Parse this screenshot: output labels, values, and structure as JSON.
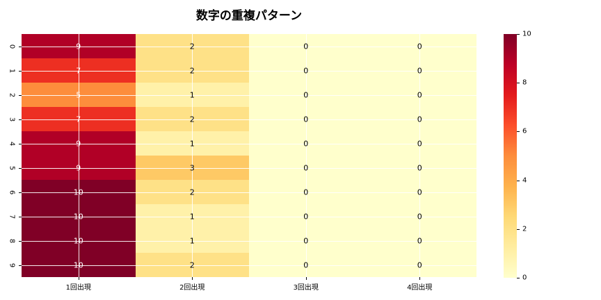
{
  "chart_data": {
    "type": "heatmap",
    "title": "数字の重複パターン",
    "rows": [
      "0",
      "1",
      "2",
      "3",
      "4",
      "5",
      "6",
      "7",
      "8",
      "9"
    ],
    "columns": [
      "1回出現",
      "2回出現",
      "3回出現",
      "4回出現"
    ],
    "values": [
      [
        9,
        2,
        0,
        0
      ],
      [
        7,
        2,
        0,
        0
      ],
      [
        5,
        1,
        0,
        0
      ],
      [
        7,
        2,
        0,
        0
      ],
      [
        9,
        1,
        0,
        0
      ],
      [
        9,
        3,
        0,
        0
      ],
      [
        10,
        2,
        0,
        0
      ],
      [
        10,
        1,
        0,
        0
      ],
      [
        10,
        1,
        0,
        0
      ],
      [
        10,
        2,
        0,
        0
      ]
    ],
    "vmin": 0,
    "vmax": 10,
    "colormap": "YlOrRd",
    "colormap_stops": [
      "#ffffcc",
      "#ffeda0",
      "#fed976",
      "#feb24c",
      "#fd8d3c",
      "#fc4e2a",
      "#e31a1c",
      "#bd0026",
      "#800026"
    ],
    "colorbar_ticks": [
      "10",
      "8",
      "6",
      "4",
      "2",
      "0"
    ],
    "annotation_colors": {
      "dark_text": "#000000",
      "light_text": "#ffffff"
    },
    "gridline_color": "#ffffff",
    "legend_position": "right",
    "grid": "on"
  }
}
